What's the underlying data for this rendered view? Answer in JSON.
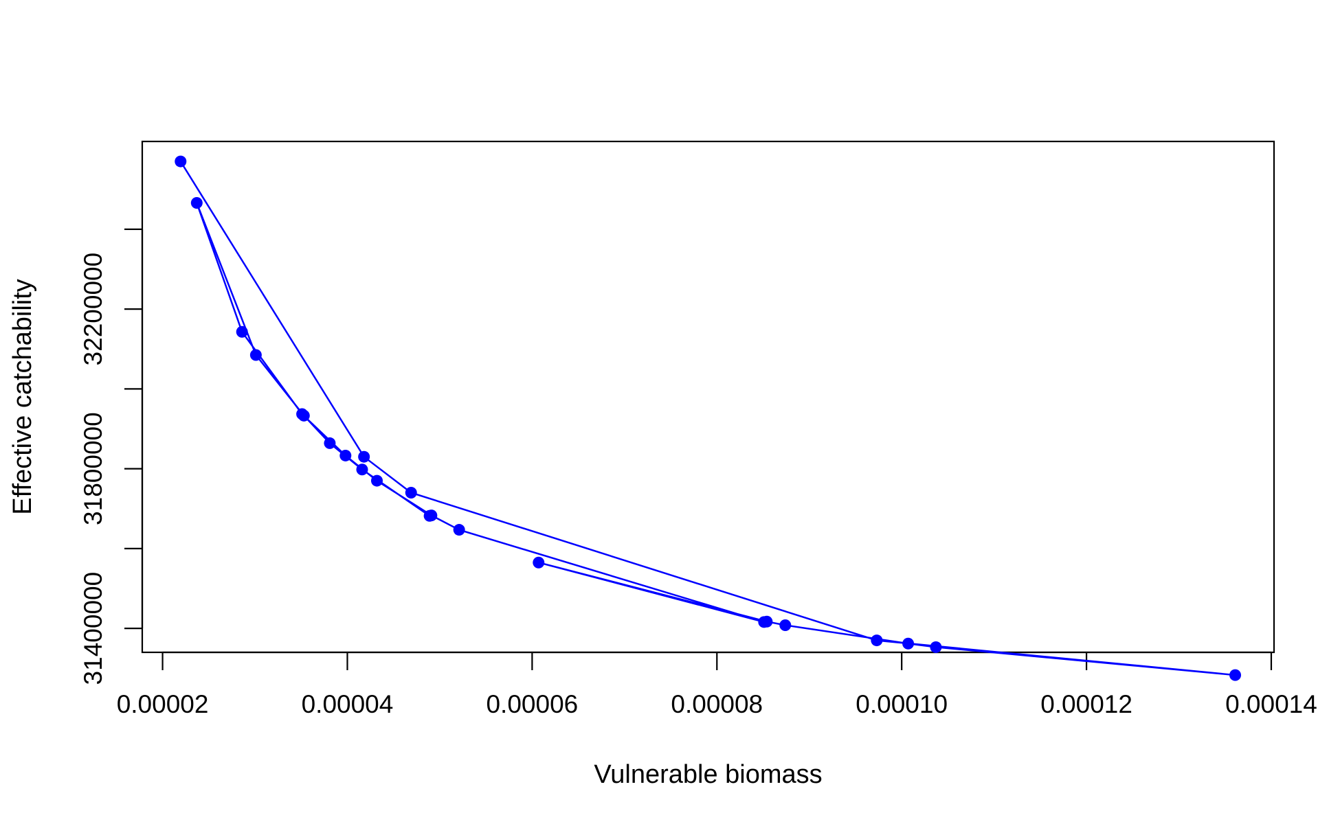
{
  "chart_data": {
    "type": "scatter",
    "title": "",
    "xlabel": "Vulnerable biomass",
    "ylabel": "Effective catchability",
    "xlim": [
      1.78e-05,
      0.0001403
    ],
    "ylim": [
      31340000,
      32620000
    ],
    "x_ticks": [
      2e-05,
      4e-05,
      6e-05,
      8e-05,
      0.0001,
      0.00012,
      0.00014
    ],
    "x_tick_labels": [
      "0.00002",
      "0.00004",
      "0.00006",
      "0.00008",
      "0.00010",
      "0.00012",
      "0.00014"
    ],
    "y_ticks": [
      31400000,
      31600000,
      31800000,
      32000000,
      32200000,
      32400000
    ],
    "y_tick_labels": [
      "31400000",
      "",
      "31800000",
      "",
      "32200000",
      ""
    ],
    "grid": false,
    "legend": "none",
    "color": "#0000ff",
    "connect_points": true,
    "series": [
      {
        "points": [
          {
            "x": 2.195e-05,
            "y": 32570000
          },
          {
            "x": 4.18e-05,
            "y": 31830000
          },
          {
            "x": 4.69e-05,
            "y": 31740000
          },
          {
            "x": 9.73e-05,
            "y": 31370000
          },
          {
            "x": 0.0001361,
            "y": 31283000
          },
          {
            "x": 0.0001037,
            "y": 31353000
          },
          {
            "x": 0.0001007,
            "y": 31362000
          },
          {
            "x": 8.74e-05,
            "y": 31408000
          },
          {
            "x": 8.54e-05,
            "y": 31417000
          },
          {
            "x": 6.07e-05,
            "y": 31565000
          },
          {
            "x": 8.51e-05,
            "y": 31416000
          },
          {
            "x": 5.21e-05,
            "y": 31647000
          },
          {
            "x": 4.91e-05,
            "y": 31683000
          },
          {
            "x": 4.32e-05,
            "y": 31770000
          },
          {
            "x": 3.98e-05,
            "y": 31833000
          },
          {
            "x": 3.51e-05,
            "y": 31937000
          },
          {
            "x": 2.86e-05,
            "y": 32143000
          },
          {
            "x": 2.37e-05,
            "y": 32466000
          },
          {
            "x": 3.01e-05,
            "y": 32085000
          },
          {
            "x": 3.53e-05,
            "y": 31933000
          },
          {
            "x": 3.81e-05,
            "y": 31864000
          },
          {
            "x": 4.16e-05,
            "y": 31798000
          },
          {
            "x": 4.89e-05,
            "y": 31682000
          }
        ]
      }
    ]
  }
}
